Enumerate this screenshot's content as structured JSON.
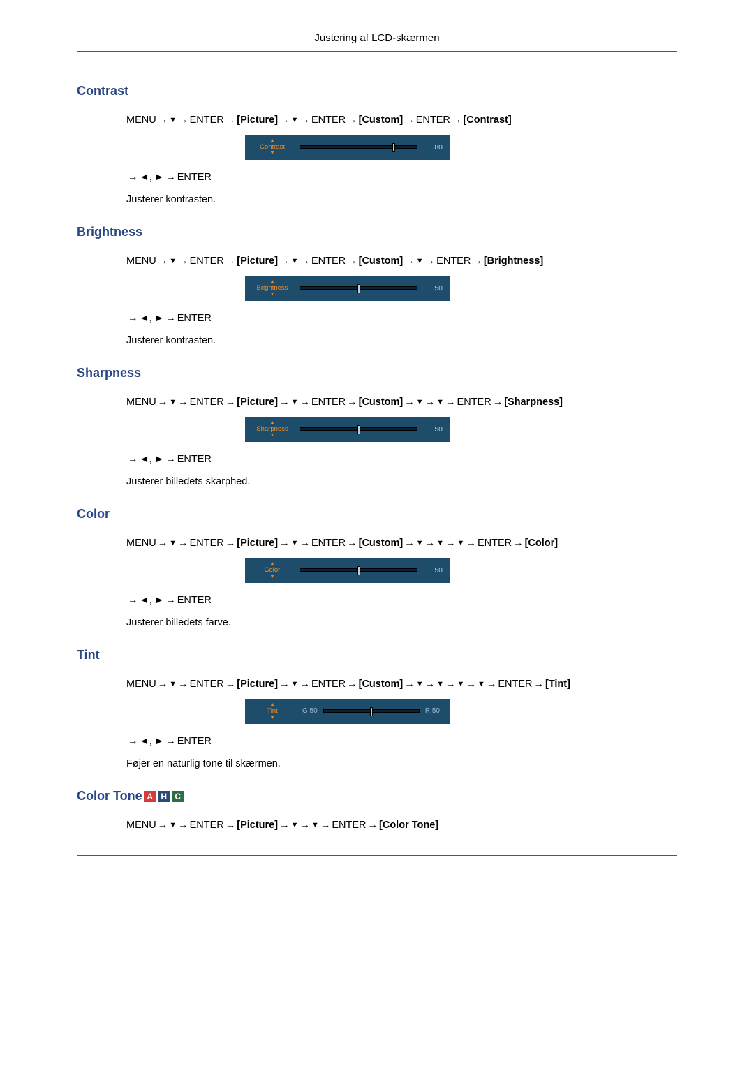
{
  "page": {
    "header": "Justering af LCD-skærmen"
  },
  "nav_tokens": {
    "menu": "MENU",
    "enter": "ENTER",
    "picture": "[Picture]",
    "custom": "[Custom]",
    "color_tone": "[Color Tone]"
  },
  "arrow_glyphs": {
    "right": "→",
    "down": "▼",
    "left": "◄",
    "fwd": "►"
  },
  "slider_style": {
    "panel_bg": "#1d4d6a",
    "label_color": "#f68c1f",
    "track_bg": "#0c2234",
    "notch_bg": "#c4cbd6",
    "value_color": "#b8c6d6"
  },
  "badges": [
    {
      "letter": "A",
      "bg": "#d63a3a"
    },
    {
      "letter": "H",
      "bg": "#2a4b78"
    },
    {
      "letter": "C",
      "bg": "#2b6f46"
    }
  ],
  "sections": [
    {
      "heading": "Contrast",
      "target_bracket": "[Contrast]",
      "down_count": 0,
      "slider": {
        "label": "Contrast",
        "value": 80,
        "percent": 80,
        "type": "std"
      },
      "desc": "Justerer kontrasten."
    },
    {
      "heading": "Brightness",
      "target_bracket": "[Brightness]",
      "down_count": 1,
      "slider": {
        "label": "Brightness",
        "value": 50,
        "percent": 50,
        "type": "std"
      },
      "desc": "Justerer kontrasten."
    },
    {
      "heading": "Sharpness",
      "target_bracket": "[Sharpness]",
      "down_count": 2,
      "slider": {
        "label": "Sharpness",
        "value": 50,
        "percent": 50,
        "type": "std"
      },
      "desc": "Justerer billedets skarphed."
    },
    {
      "heading": "Color",
      "target_bracket": "[Color]",
      "down_count": 3,
      "slider": {
        "label": "Color",
        "value": 50,
        "percent": 50,
        "type": "std"
      },
      "desc": "Justerer billedets farve."
    },
    {
      "heading": "Tint",
      "target_bracket": "[Tint]",
      "down_count": 4,
      "slider": {
        "label": "Tint",
        "g_value": 50,
        "r_value": 50,
        "percent": 50,
        "type": "tint"
      },
      "desc": "Føjer en naturlig tone til skærmen."
    },
    {
      "heading": "Color Tone",
      "is_color_tone_nav": true
    }
  ]
}
